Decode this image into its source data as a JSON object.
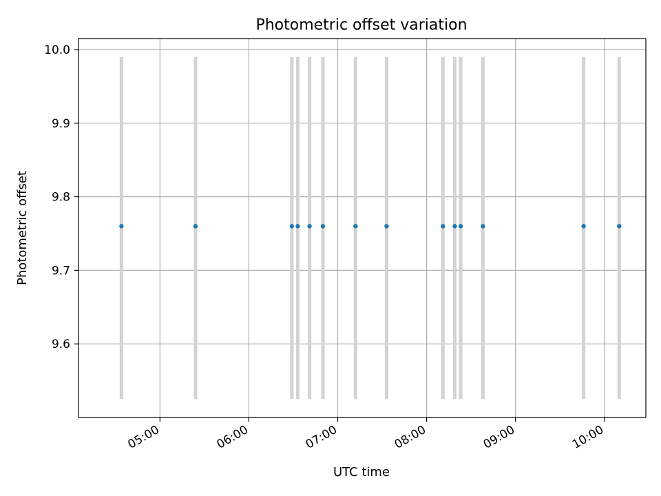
{
  "chart_data": {
    "type": "scatter",
    "title": "Photometric offset variation",
    "xlabel": "UTC time",
    "ylabel": "Photometric offset",
    "x_axis": {
      "type": "time",
      "range": [
        "04:05",
        "10:28"
      ],
      "ticks": [
        "05:00",
        "06:00",
        "07:00",
        "08:00",
        "09:00",
        "10:00"
      ]
    },
    "y_axis": {
      "range": [
        9.5,
        10.015
      ],
      "ticks": [
        "9.6",
        "9.7",
        "9.8",
        "9.9",
        "10.0"
      ]
    },
    "grid": true,
    "points": [
      {
        "x": "04:34",
        "y": 9.76,
        "y_err_low": 9.525,
        "y_err_high": 9.99
      },
      {
        "x": "05:24",
        "y": 9.76,
        "y_err_low": 9.525,
        "y_err_high": 9.99
      },
      {
        "x": "06:29",
        "y": 9.76,
        "y_err_low": 9.525,
        "y_err_high": 9.99
      },
      {
        "x": "06:33",
        "y": 9.76,
        "y_err_low": 9.525,
        "y_err_high": 9.99
      },
      {
        "x": "06:41",
        "y": 9.76,
        "y_err_low": 9.525,
        "y_err_high": 9.99
      },
      {
        "x": "06:50",
        "y": 9.76,
        "y_err_low": 9.525,
        "y_err_high": 9.99
      },
      {
        "x": "07:12",
        "y": 9.76,
        "y_err_low": 9.525,
        "y_err_high": 9.99
      },
      {
        "x": "07:33",
        "y": 9.76,
        "y_err_low": 9.525,
        "y_err_high": 9.99
      },
      {
        "x": "08:11",
        "y": 9.76,
        "y_err_low": 9.525,
        "y_err_high": 9.99
      },
      {
        "x": "08:19",
        "y": 9.76,
        "y_err_low": 9.525,
        "y_err_high": 9.99
      },
      {
        "x": "08:23",
        "y": 9.76,
        "y_err_low": 9.525,
        "y_err_high": 9.99
      },
      {
        "x": "08:38",
        "y": 9.76,
        "y_err_low": 9.525,
        "y_err_high": 9.99
      },
      {
        "x": "09:46",
        "y": 9.76,
        "y_err_low": 9.525,
        "y_err_high": 9.99
      },
      {
        "x": "10:10",
        "y": 9.76,
        "y_err_low": 9.525,
        "y_err_high": 9.99
      }
    ],
    "colors": {
      "marker": "#1f77b4",
      "errorbar": "#d3d3d3",
      "grid": "#b0b0b0",
      "axes": "#000000"
    }
  }
}
